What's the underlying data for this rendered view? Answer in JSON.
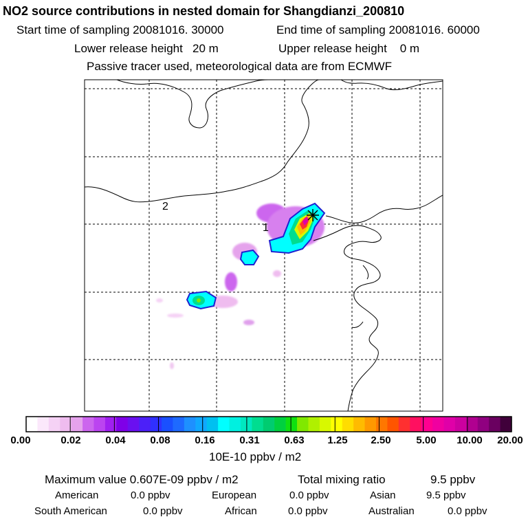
{
  "header": {
    "title": "NO2 source contributions in nested domain for Shangdianzi_200810",
    "start_label": "Start time of sampling",
    "start_value": "20081016. 30000",
    "end_label": "End time of sampling",
    "end_value": "20081016. 60000",
    "lower_label": "Lower release height",
    "lower_value": "20 m",
    "upper_label": "Upper release height",
    "upper_value": "0 m",
    "note": "Passive tracer used, meteorological data are from ECMWF"
  },
  "map": {
    "region_labels": [
      "1",
      "2"
    ],
    "receptor_marker": "star-icon"
  },
  "colorbar": {
    "ticks": [
      "0.00",
      "0.02",
      "0.04",
      "0.08",
      "0.16",
      "0.31",
      "0.63",
      "1.25",
      "2.50",
      "5.00",
      "10.00",
      "20.00"
    ],
    "units": "10E-10 ppbv / m2",
    "colors": [
      "#ffffff",
      "#fbe8fb",
      "#f5d2f5",
      "#efbcef",
      "#e5a3ec",
      "#cc66ee",
      "#bb44f0",
      "#a020f0",
      "#7f00e8",
      "#6a10f0",
      "#4c20f8",
      "#3030ff",
      "#1a50ff",
      "#1e6aff",
      "#1e90ff",
      "#10a8ff",
      "#00c0f0",
      "#00ffff",
      "#00f0e0",
      "#00e8c0",
      "#00dd90",
      "#00cc70",
      "#00d040",
      "#10e010",
      "#80e800",
      "#b0f000",
      "#d8f800",
      "#ffff00",
      "#ffdd00",
      "#ffbb00",
      "#ff9900",
      "#ff7700",
      "#ff5500",
      "#ff3030",
      "#ff1060",
      "#ff0090",
      "#f000a0",
      "#e000a8",
      "#cc00a0",
      "#b00090",
      "#900080",
      "#6a0060",
      "#40003a"
    ]
  },
  "stats": {
    "max_label": "Maximum value",
    "max_value": "0.607E-09 ppbv / m2",
    "total_label": "Total mixing ratio",
    "total_value": "9.5 ppbv",
    "regions": [
      {
        "name": "American",
        "value": "0.0 ppbv"
      },
      {
        "name": "European",
        "value": "0.0 ppbv"
      },
      {
        "name": "Asian",
        "value": "9.5 ppbv"
      },
      {
        "name": "South American",
        "value": "0.0 ppbv"
      },
      {
        "name": "African",
        "value": "0.0 ppbv"
      },
      {
        "name": "Australian",
        "value": "0.0 ppbv"
      }
    ]
  }
}
